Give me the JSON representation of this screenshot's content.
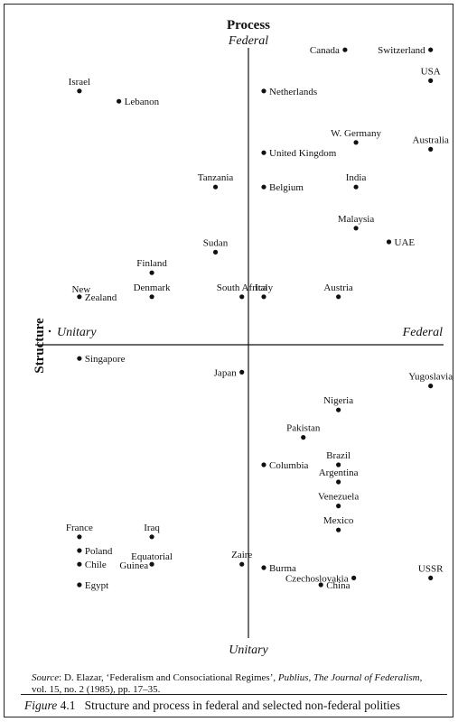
{
  "chart_data": {
    "type": "scatter",
    "title": "",
    "axes": {
      "vertical": {
        "title": "Process",
        "top_label": "Federal",
        "bottom_label": "Unitary"
      },
      "horizontal": {
        "title": "Structure",
        "left_label": "Unitary",
        "right_label": "Federal"
      }
    },
    "xlim": [
      -10,
      10
    ],
    "ylim": [
      -10,
      10
    ],
    "grid": false,
    "points": [
      {
        "name": "Canada",
        "x": 4.4,
        "y": 8.6,
        "align": "left"
      },
      {
        "name": "Switzerland",
        "x": 8.3,
        "y": 8.6,
        "align": "left"
      },
      {
        "name": "USA",
        "x": 8.3,
        "y": 7.7,
        "align": "above"
      },
      {
        "name": "Israel",
        "x": -7.7,
        "y": 7.4,
        "align": "above"
      },
      {
        "name": "Lebanon",
        "x": -5.9,
        "y": 7.1,
        "align": "right"
      },
      {
        "name": "Netherlands",
        "x": 0.7,
        "y": 7.4,
        "align": "right"
      },
      {
        "name": "W. Germany",
        "x": 4.9,
        "y": 5.9,
        "align": "above"
      },
      {
        "name": "Australia",
        "x": 8.3,
        "y": 5.7,
        "align": "above"
      },
      {
        "name": "United Kingdom",
        "x": 0.7,
        "y": 5.6,
        "align": "right"
      },
      {
        "name": "Tanzania",
        "x": -1.5,
        "y": 4.6,
        "align": "above"
      },
      {
        "name": "Belgium",
        "x": 0.7,
        "y": 4.6,
        "align": "right"
      },
      {
        "name": "India",
        "x": 4.9,
        "y": 4.6,
        "align": "above"
      },
      {
        "name": "Malaysia",
        "x": 4.9,
        "y": 3.4,
        "align": "above"
      },
      {
        "name": "UAE",
        "x": 6.4,
        "y": 3.0,
        "align": "right"
      },
      {
        "name": "Sudan",
        "x": -1.5,
        "y": 2.7,
        "align": "above"
      },
      {
        "name": "Finland",
        "x": -4.4,
        "y": 2.1,
        "align": "above"
      },
      {
        "name": "New Zealand",
        "x": -7.7,
        "y": 1.4,
        "align": "newzealand"
      },
      {
        "name": "Denmark",
        "x": -4.4,
        "y": 1.4,
        "align": "above"
      },
      {
        "name": "South Africa",
        "x": -0.3,
        "y": 1.4,
        "align": "above"
      },
      {
        "name": "Italy",
        "x": 0.7,
        "y": 1.4,
        "align": "above"
      },
      {
        "name": "Austria",
        "x": 4.1,
        "y": 1.4,
        "align": "above"
      },
      {
        "name": "Singapore",
        "x": -7.7,
        "y": -0.4,
        "align": "right"
      },
      {
        "name": "Japan",
        "x": -0.3,
        "y": -0.8,
        "align": "left"
      },
      {
        "name": "Yugoslavia",
        "x": 8.3,
        "y": -1.2,
        "align": "above"
      },
      {
        "name": "Nigeria",
        "x": 4.1,
        "y": -1.9,
        "align": "above"
      },
      {
        "name": "Pakistan",
        "x": 2.5,
        "y": -2.7,
        "align": "above"
      },
      {
        "name": "Brazil",
        "x": 4.1,
        "y": -3.5,
        "align": "above"
      },
      {
        "name": "Columbia",
        "x": 0.7,
        "y": -3.5,
        "align": "right"
      },
      {
        "name": "Argentina",
        "x": 4.1,
        "y": -4.0,
        "align": "above"
      },
      {
        "name": "Venezuela",
        "x": 4.1,
        "y": -4.7,
        "align": "above"
      },
      {
        "name": "Mexico",
        "x": 4.1,
        "y": -5.4,
        "align": "above"
      },
      {
        "name": "France",
        "x": -7.7,
        "y": -5.6,
        "align": "above"
      },
      {
        "name": "Iraq",
        "x": -4.4,
        "y": -5.6,
        "align": "above"
      },
      {
        "name": "Poland",
        "x": -7.7,
        "y": -6.0,
        "align": "right"
      },
      {
        "name": "Chile",
        "x": -7.7,
        "y": -6.4,
        "align": "right"
      },
      {
        "name": "Equatorial Guinea",
        "x": -4.4,
        "y": -6.4,
        "align": "eqguinea"
      },
      {
        "name": "Zaire",
        "x": -0.3,
        "y": -6.4,
        "align": "above"
      },
      {
        "name": "Burma",
        "x": 0.7,
        "y": -6.5,
        "align": "right"
      },
      {
        "name": "Czechoslovakia",
        "x": 4.8,
        "y": -6.8,
        "align": "left"
      },
      {
        "name": "China",
        "x": 3.3,
        "y": -7.0,
        "align": "right"
      },
      {
        "name": "USSR",
        "x": 8.3,
        "y": -6.8,
        "align": "above"
      },
      {
        "name": "Egypt",
        "x": -7.7,
        "y": -7.0,
        "align": "right"
      }
    ]
  },
  "source": {
    "lead": "Source",
    "text1": ": D. Elazar, ‘Federalism and Consociational Regimes’, ",
    "journal": "Publius, The Journal of Federalism",
    "text2": ",",
    "line2": "vol. 15, no. 2 (1985), pp. 17–35."
  },
  "caption": {
    "prefix": "Figure",
    "number": " 4.1",
    "text": "Structure and process in federal and selected non-federal polities"
  }
}
